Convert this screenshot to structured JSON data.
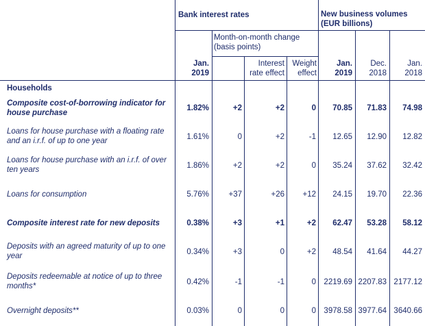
{
  "header": {
    "bank_interest_rates": "Bank interest rates",
    "new_business_volumes": "New business volumes (EUR billions)",
    "mom_change": "Month-on-month change (basis points)",
    "interest_rate_effect": "Interest rate effect",
    "weight_effect": "Weight effect",
    "jan2019_rate_1": "Jan.",
    "jan2019_rate_2": "2019",
    "jan2019_vol_1": "Jan.",
    "jan2019_vol_2": "2019",
    "dec2018_1": "Dec.",
    "dec2018_2": "2018",
    "jan2018_1": "Jan.",
    "jan2018_2": "2018"
  },
  "section_title": "Households",
  "rows": [
    {
      "label": "Composite cost-of-borrowing indicator for house purchase",
      "bold": true,
      "rate": "1.82%",
      "mom": "+2",
      "ire": "+2",
      "we": "0",
      "v_jan19": "70.85",
      "v_dec18": "71.83",
      "v_jan18": "74.98"
    },
    {
      "label": "Loans for house purchase with a floating rate and an i.r.f. of up to one year",
      "bold": false,
      "rate": "1.61%",
      "mom": "0",
      "ire": "+2",
      "we": "-1",
      "v_jan19": "12.65",
      "v_dec18": "12.90",
      "v_jan18": "12.82"
    },
    {
      "label": "Loans for house purchase with an i.r.f. of over ten years",
      "bold": false,
      "rate": "1.86%",
      "mom": "+2",
      "ire": "+2",
      "we": "0",
      "v_jan19": "35.24",
      "v_dec18": "37.62",
      "v_jan18": "32.42"
    },
    {
      "label": "Loans for consumption",
      "bold": false,
      "rate": "5.76%",
      "mom": "+37",
      "ire": "+26",
      "we": "+12",
      "v_jan19": "24.15",
      "v_dec18": "19.70",
      "v_jan18": "22.36"
    },
    {
      "label": "Composite interest rate for new deposits",
      "bold": true,
      "rate": "0.38%",
      "mom": "+3",
      "ire": "+1",
      "we": "+2",
      "v_jan19": "62.47",
      "v_dec18": "53.28",
      "v_jan18": "58.12"
    },
    {
      "label": "Deposits with an agreed maturity of up to one year",
      "bold": false,
      "rate": "0.34%",
      "mom": "+3",
      "ire": "0",
      "we": "+2",
      "v_jan19": "48.54",
      "v_dec18": "41.64",
      "v_jan18": "44.27"
    },
    {
      "label": "Deposits redeemable at notice of up to three months*",
      "bold": false,
      "rate": "0.42%",
      "mom": "-1",
      "ire": "-1",
      "we": "0",
      "v_jan19": "2219.69",
      "v_dec18": "2207.83",
      "v_jan18": "2177.12"
    },
    {
      "label": "Overnight deposits**",
      "bold": false,
      "rate": "0.03%",
      "mom": "0",
      "ire": "0",
      "we": "0",
      "v_jan19": "3978.58",
      "v_dec18": "3977.64",
      "v_jan18": "3640.66"
    }
  ]
}
